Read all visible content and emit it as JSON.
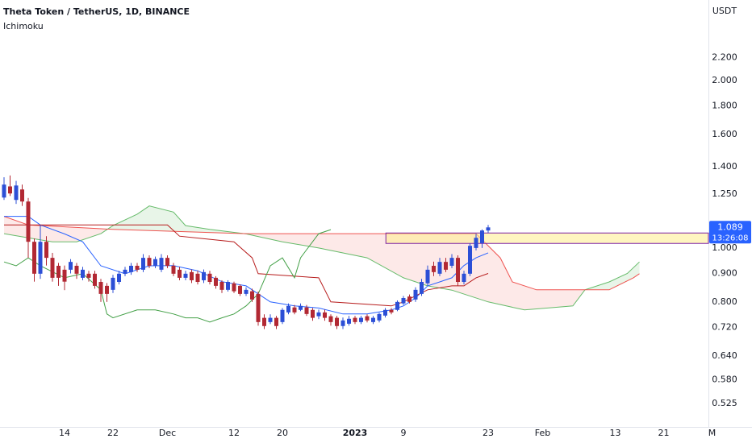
{
  "chart_data": {
    "type": "candlestick",
    "title": "Theta Token / TetherUS, 1D, BINANCE",
    "indicator": "Ichimoku",
    "y_axis_unit": "USDT",
    "log_scale": true,
    "grid": false,
    "xlim": [
      -0.667,
      116.4
    ],
    "ylim": [
      0.477,
      2.79
    ],
    "xticks": [
      {
        "value": 10,
        "label": "14"
      },
      {
        "value": 18,
        "label": "22"
      },
      {
        "value": 27,
        "label": "Dec"
      },
      {
        "value": 38,
        "label": "12"
      },
      {
        "value": 46,
        "label": "20"
      },
      {
        "value": 58,
        "label": "2023",
        "bold": true
      },
      {
        "value": 66,
        "label": "9"
      },
      {
        "value": 80,
        "label": "23"
      },
      {
        "value": 89,
        "label": "Feb"
      },
      {
        "value": 101,
        "label": "13"
      },
      {
        "value": 109,
        "label": "21"
      },
      {
        "value": 117,
        "label": "M"
      }
    ],
    "yticks": [
      {
        "value": 0.525,
        "label": "0.525"
      },
      {
        "value": 0.58,
        "label": "0.580"
      },
      {
        "value": 0.64,
        "label": "0.640"
      },
      {
        "value": 0.72,
        "label": "0.720"
      },
      {
        "value": 0.8,
        "label": "0.800"
      },
      {
        "value": 0.9,
        "label": "0.900"
      },
      {
        "value": 1.0,
        "label": "1.000"
      },
      {
        "value": 1.25,
        "label": "1.250"
      },
      {
        "value": 1.4,
        "label": "1.400"
      },
      {
        "value": 1.6,
        "label": "1.600"
      },
      {
        "value": 1.8,
        "label": "1.800"
      },
      {
        "value": 2.0,
        "label": "2.000"
      },
      {
        "value": 2.2,
        "label": "2.200"
      }
    ],
    "up_color": "#2c4fd6",
    "down_color": "#b22833",
    "x": [
      0,
      1,
      2,
      3,
      4,
      5,
      6,
      7,
      8,
      9,
      10,
      11,
      12,
      13,
      14,
      15,
      16,
      17,
      18,
      19,
      20,
      21,
      22,
      23,
      24,
      25,
      26,
      27,
      28,
      29,
      30,
      31,
      32,
      33,
      34,
      35,
      36,
      37,
      38,
      39,
      40,
      41,
      42,
      43,
      44,
      45,
      46,
      47,
      48,
      49,
      50,
      51,
      52,
      53,
      54,
      55,
      56,
      57,
      58,
      59,
      60,
      61,
      62,
      63,
      64,
      65,
      66,
      67,
      68,
      69,
      70,
      71,
      72,
      73,
      74,
      75,
      76,
      77,
      78,
      79,
      80
    ],
    "open": [
      1.232,
      1.29,
      1.22,
      1.274,
      1.212,
      1.026,
      0.899,
      1.026,
      0.96,
      0.929,
      0.914,
      0.914,
      0.929,
      0.884,
      0.899,
      0.899,
      0.869,
      0.855,
      0.841,
      0.869,
      0.899,
      0.905,
      0.929,
      0.914,
      0.96,
      0.929,
      0.914,
      0.96,
      0.929,
      0.914,
      0.884,
      0.905,
      0.899,
      0.875,
      0.899,
      0.884,
      0.869,
      0.841,
      0.864,
      0.855,
      0.827,
      0.836,
      0.827,
      0.749,
      0.736,
      0.749,
      0.736,
      0.766,
      0.782,
      0.774,
      0.782,
      0.774,
      0.754,
      0.766,
      0.754,
      0.749,
      0.724,
      0.731,
      0.749,
      0.736,
      0.754,
      0.736,
      0.741,
      0.756,
      0.774,
      0.774,
      0.795,
      0.818,
      0.808,
      0.827,
      0.864,
      0.929,
      0.899,
      0.944,
      0.929,
      0.96,
      0.869,
      0.899,
      1.0,
      1.02,
      1.075
    ],
    "high": [
      1.34,
      1.35,
      1.32,
      1.3,
      1.23,
      1.04,
      1.1,
      1.05,
      0.98,
      0.94,
      0.93,
      0.955,
      0.94,
      0.925,
      0.91,
      0.91,
      0.88,
      0.865,
      0.895,
      0.91,
      0.925,
      0.94,
      0.94,
      0.975,
      0.97,
      0.965,
      0.975,
      0.97,
      0.94,
      0.925,
      0.91,
      0.915,
      0.91,
      0.915,
      0.91,
      0.89,
      0.875,
      0.875,
      0.87,
      0.86,
      0.85,
      0.845,
      0.835,
      0.76,
      0.76,
      0.755,
      0.78,
      0.795,
      0.79,
      0.795,
      0.79,
      0.78,
      0.775,
      0.775,
      0.76,
      0.755,
      0.75,
      0.755,
      0.755,
      0.755,
      0.76,
      0.755,
      0.765,
      0.78,
      0.78,
      0.805,
      0.82,
      0.825,
      0.85,
      0.88,
      0.93,
      0.945,
      0.96,
      0.96,
      0.975,
      0.97,
      0.91,
      1.02,
      1.06,
      1.08,
      1.1
    ],
    "low": [
      1.22,
      1.24,
      1.2,
      1.19,
      0.96,
      0.87,
      0.88,
      0.93,
      0.87,
      0.855,
      0.84,
      0.9,
      0.88,
      0.875,
      0.87,
      0.845,
      0.8,
      0.8,
      0.83,
      0.86,
      0.89,
      0.895,
      0.905,
      0.905,
      0.92,
      0.92,
      0.905,
      0.92,
      0.89,
      0.875,
      0.875,
      0.865,
      0.86,
      0.865,
      0.86,
      0.845,
      0.83,
      0.835,
      0.83,
      0.82,
      0.82,
      0.8,
      0.725,
      0.715,
      0.73,
      0.715,
      0.73,
      0.76,
      0.76,
      0.77,
      0.755,
      0.74,
      0.745,
      0.74,
      0.725,
      0.715,
      0.715,
      0.725,
      0.73,
      0.73,
      0.735,
      0.73,
      0.735,
      0.75,
      0.76,
      0.77,
      0.79,
      0.795,
      0.8,
      0.82,
      0.855,
      0.89,
      0.89,
      0.905,
      0.92,
      0.855,
      0.86,
      0.89,
      0.99,
      1.0,
      1.065
    ],
    "close": [
      1.3,
      1.253,
      1.295,
      1.212,
      1.026,
      0.899,
      1.026,
      0.96,
      0.884,
      0.884,
      0.87,
      0.944,
      0.899,
      0.914,
      0.884,
      0.855,
      0.827,
      0.827,
      0.884,
      0.899,
      0.914,
      0.929,
      0.914,
      0.96,
      0.929,
      0.955,
      0.96,
      0.929,
      0.899,
      0.884,
      0.899,
      0.875,
      0.869,
      0.905,
      0.869,
      0.855,
      0.841,
      0.869,
      0.836,
      0.827,
      0.841,
      0.808,
      0.736,
      0.724,
      0.749,
      0.724,
      0.774,
      0.787,
      0.766,
      0.787,
      0.761,
      0.749,
      0.766,
      0.749,
      0.736,
      0.724,
      0.741,
      0.746,
      0.736,
      0.749,
      0.741,
      0.749,
      0.761,
      0.774,
      0.766,
      0.8,
      0.813,
      0.8,
      0.841,
      0.869,
      0.914,
      0.905,
      0.944,
      0.914,
      0.96,
      0.869,
      0.899,
      1.009,
      1.043,
      1.075,
      1.089
    ],
    "lines": [
      {
        "color": "#2962ff",
        "x": [
          0,
          4,
          6,
          10,
          13,
          16,
          20,
          24,
          28,
          32,
          36,
          40,
          44,
          48,
          52,
          56,
          60,
          64,
          66,
          68,
          70,
          72,
          74,
          76,
          78,
          80
        ],
        "values": [
          1.14,
          1.14,
          1.1,
          1.06,
          1.026,
          0.929,
          0.899,
          0.929,
          0.93,
          0.91,
          0.87,
          0.855,
          0.8,
          0.787,
          0.78,
          0.761,
          0.761,
          0.774,
          0.787,
          0.813,
          0.855,
          0.869,
          0.884,
          0.93,
          0.96,
          0.98
        ]
      },
      {
        "color": "#b71c1c",
        "x": [
          0,
          27,
          29,
          38,
          41,
          42,
          52,
          54,
          64,
          66,
          70,
          74,
          76,
          78,
          80
        ],
        "values": [
          1.1,
          1.1,
          1.05,
          1.026,
          0.96,
          0.899,
          0.884,
          0.8,
          0.787,
          0.8,
          0.841,
          0.855,
          0.855,
          0.884,
          0.9
        ]
      },
      {
        "color": "#43a047",
        "x": [
          0,
          2,
          4,
          6,
          10,
          13,
          16,
          17,
          18,
          22,
          25,
          28,
          30,
          32,
          34,
          36,
          38,
          40,
          42,
          44,
          46,
          48,
          49,
          50,
          52,
          54
        ],
        "values": [
          0.944,
          0.929,
          0.96,
          0.929,
          0.884,
          0.899,
          0.841,
          0.761,
          0.749,
          0.774,
          0.774,
          0.761,
          0.749,
          0.749,
          0.736,
          0.749,
          0.761,
          0.787,
          0.827,
          0.929,
          0.96,
          0.884,
          0.96,
          0.993,
          1.061,
          1.079
        ]
      }
    ],
    "cloud": {
      "span_a": {
        "color": "#66bb6a",
        "x": [
          0,
          4,
          8,
          12,
          16,
          18,
          22,
          24,
          28,
          30,
          34,
          40,
          46,
          52,
          60,
          66,
          70,
          74,
          80,
          86,
          94,
          96,
          100,
          103,
          105
        ],
        "values": [
          1.061,
          1.043,
          1.026,
          1.026,
          1.061,
          1.097,
          1.15,
          1.19,
          1.16,
          1.097,
          1.08,
          1.06,
          1.026,
          1.0,
          0.96,
          0.884,
          0.855,
          0.84,
          0.8,
          0.774,
          0.787,
          0.841,
          0.869,
          0.9,
          0.944
        ]
      },
      "span_b": {
        "color": "#ef5350",
        "x": [
          0,
          4,
          18,
          40,
          60,
          78,
          82,
          84,
          88,
          100,
          104,
          105
        ],
        "values": [
          1.14,
          1.1,
          1.08,
          1.061,
          1.061,
          1.061,
          0.96,
          0.869,
          0.841,
          0.841,
          0.884,
          0.899
        ]
      },
      "up_fill": "rgba(76,175,80,0.13)",
      "down_fill": "rgba(239,83,80,0.13)"
    },
    "zone": {
      "x0": 63.1,
      "top": 1.064,
      "bottom": 1.019,
      "fill": "rgba(255,236,140,0.55)",
      "border": "#7b1fa2"
    },
    "price_label": {
      "value": 1.089,
      "label": "1.089",
      "countdown": "13:26:08",
      "color": "#2962ff"
    }
  }
}
